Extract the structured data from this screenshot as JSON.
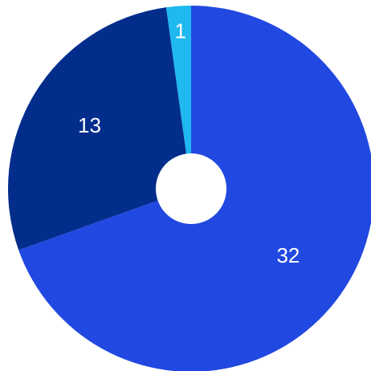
{
  "chart_data": {
    "type": "pie",
    "donut": true,
    "categories": [
      "",
      "",
      ""
    ],
    "values": [
      32,
      13,
      1
    ],
    "value_labels": [
      "32",
      "13",
      "1"
    ],
    "colors": [
      "#2148e0",
      "#032d8b",
      "#1fb8f0"
    ],
    "start_angle_deg": 0,
    "direction": "clockwise",
    "hole_color": "#ffffff",
    "legend": "none"
  }
}
